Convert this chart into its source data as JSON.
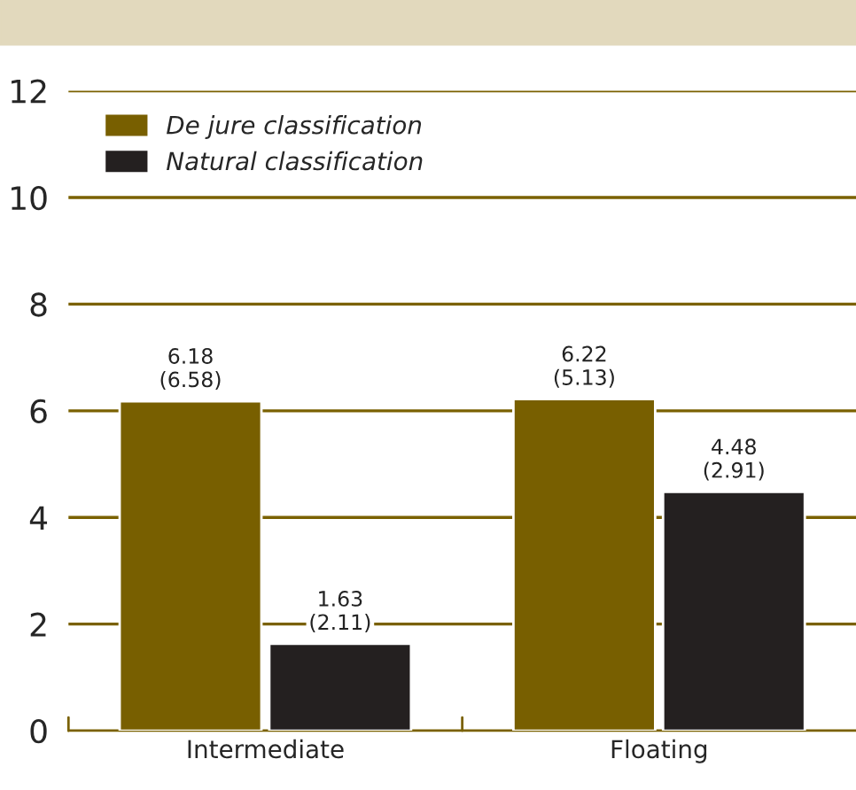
{
  "chart_data": {
    "type": "bar",
    "categories": [
      "Intermediate",
      "Floating"
    ],
    "series": [
      {
        "name": "De jure classification",
        "color": "#785f00",
        "values": [
          6.18,
          6.22
        ],
        "value_labels": [
          "6.18\n(6.58)",
          "6.22\n(5.13)"
        ]
      },
      {
        "name": "Natural classification",
        "color": "#242020",
        "values": [
          1.63,
          4.48
        ],
        "value_labels": [
          "1.63\n(2.11)",
          "4.48\n(2.91)"
        ]
      }
    ],
    "ylim": [
      0,
      12
    ],
    "yticks": [
      0,
      2,
      4,
      6,
      8,
      10,
      12
    ],
    "grid": "y",
    "legend": "top left"
  }
}
